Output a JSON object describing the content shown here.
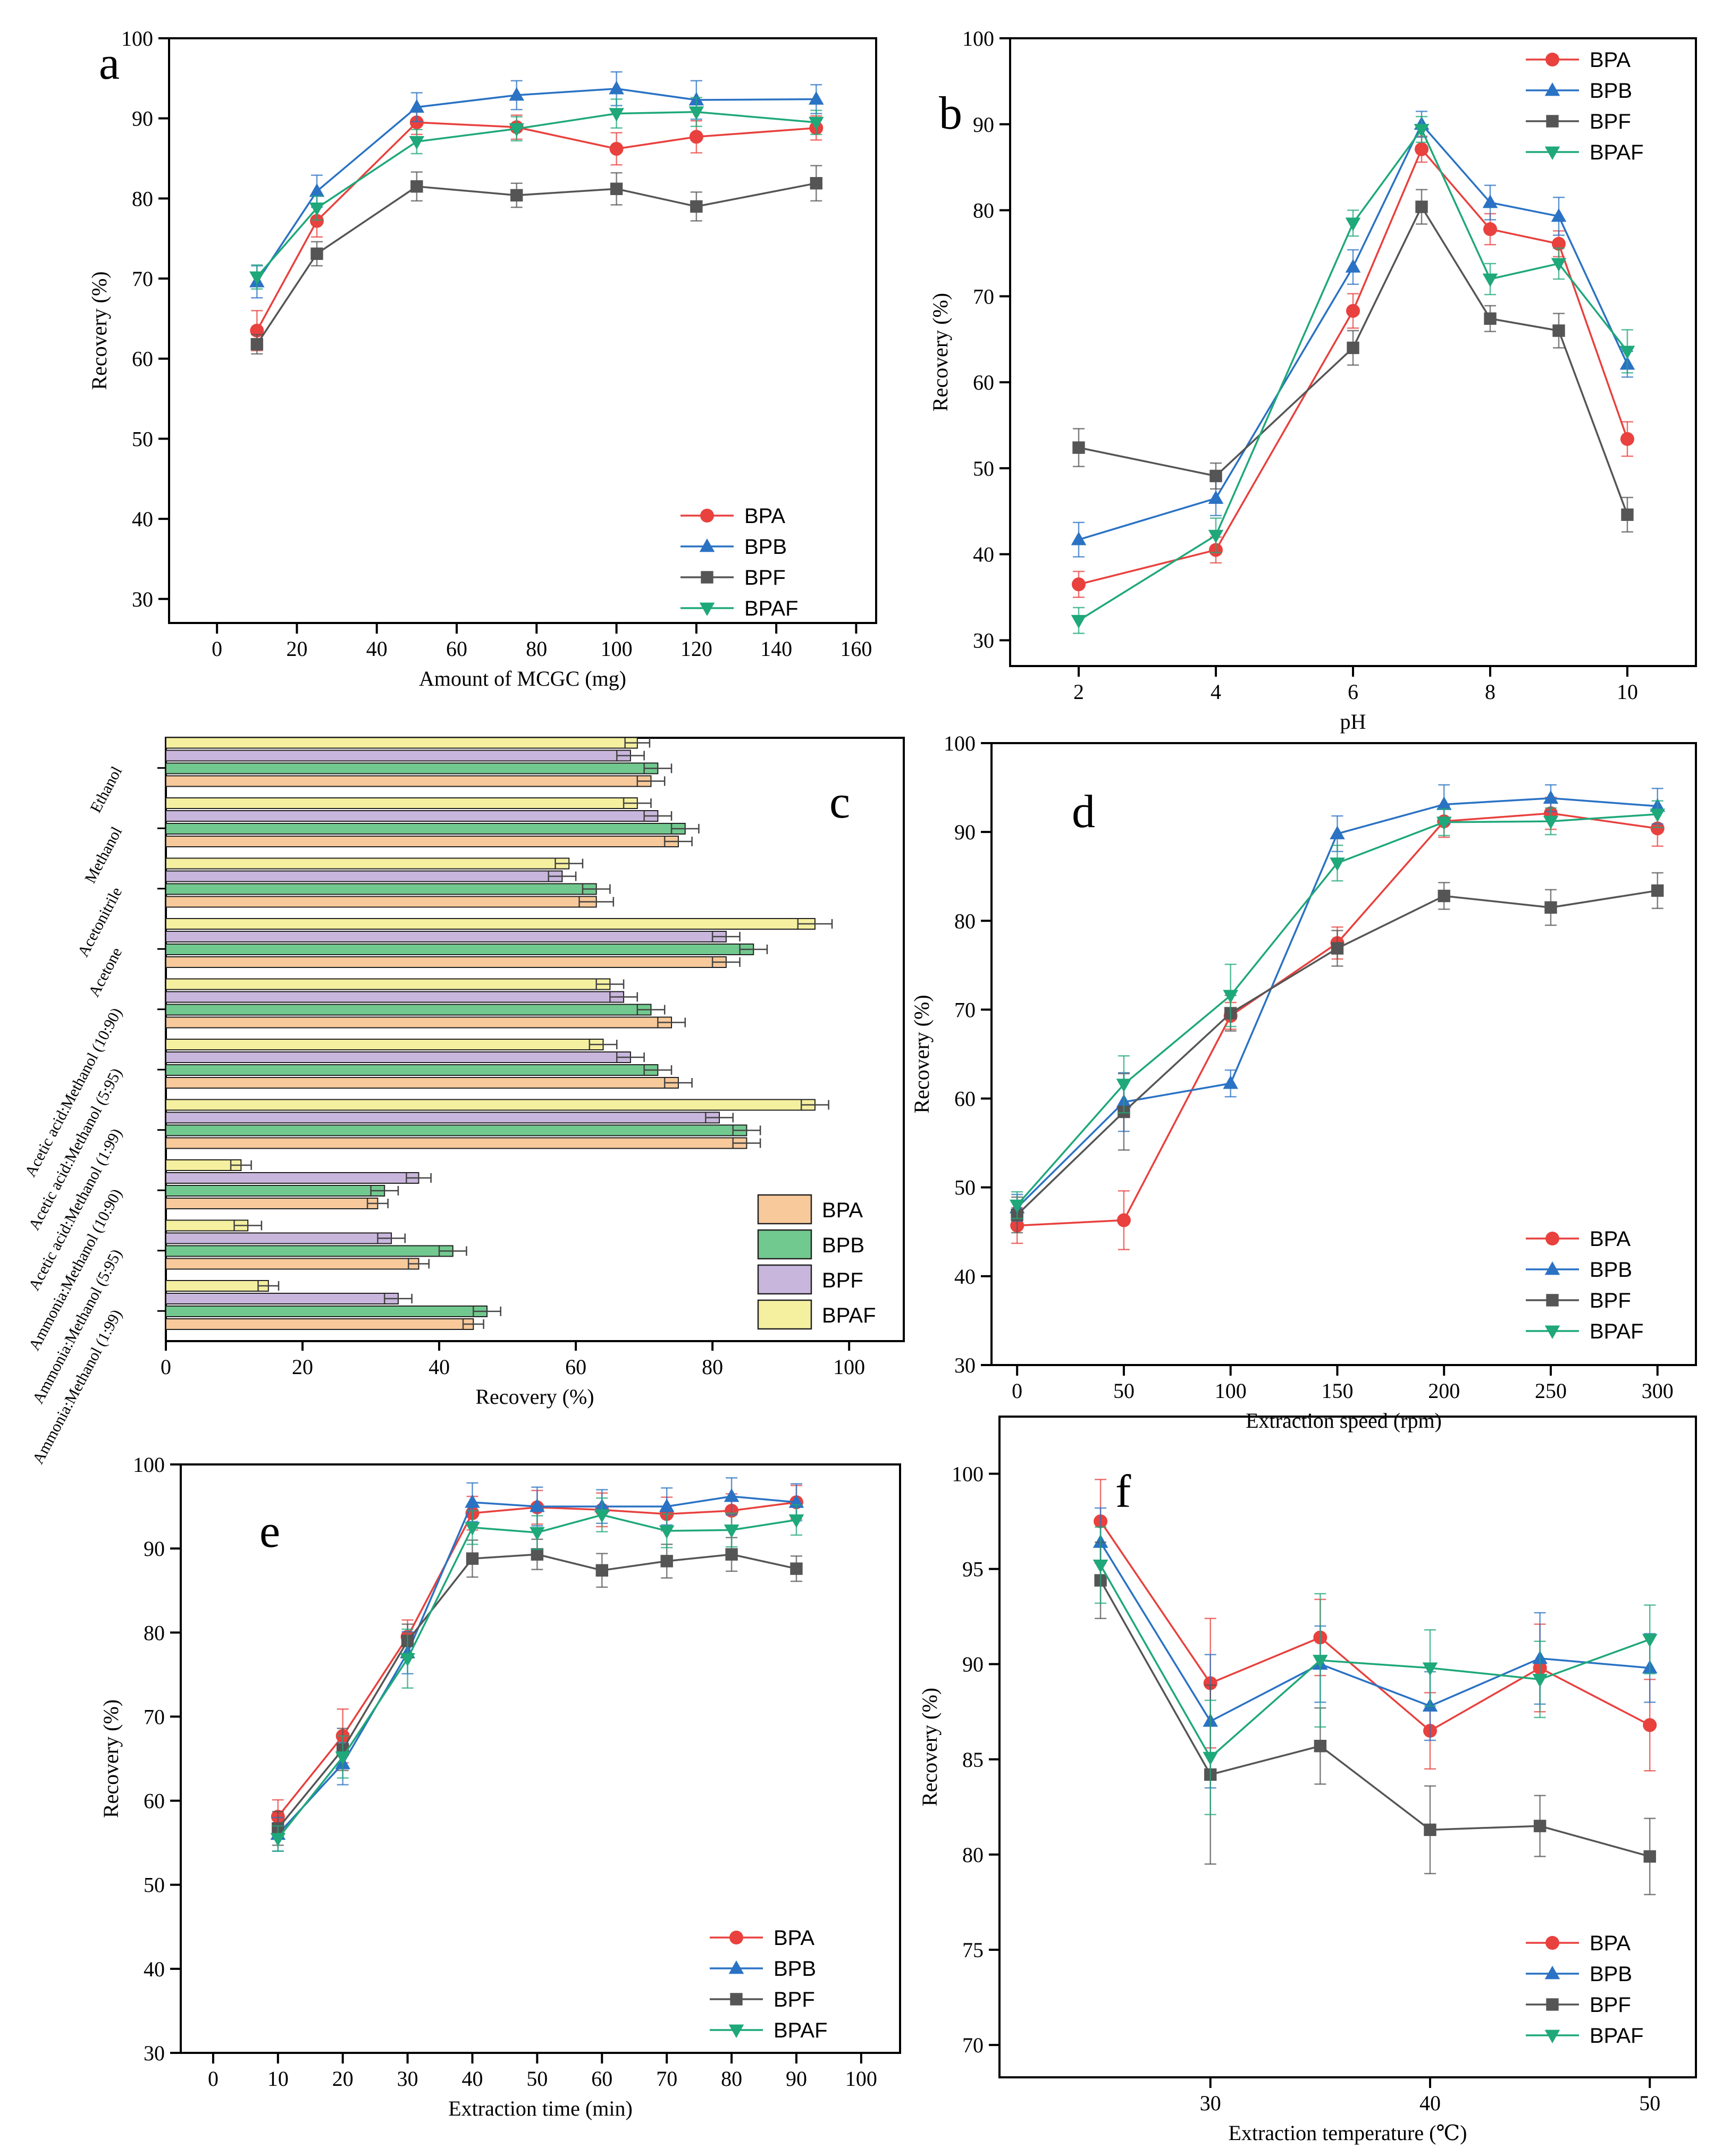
{
  "colors": {
    "BPA": "#e8413e",
    "BPB": "#2a72c4",
    "BPF": "#555555",
    "BPAF": "#1fa87a",
    "BPA_fill": "#f8c99a",
    "BPB_fill": "#72c98f",
    "BPF_fill": "#c9b6dd",
    "BPAF_fill": "#f5f0a0"
  },
  "chart_data": [
    {
      "id": "a",
      "type": "line",
      "panel_label": "a",
      "xlabel": "Amount of MCGC (mg)",
      "ylabel": "Recovery (%)",
      "xlim": [
        -12,
        165
      ],
      "ylim": [
        27,
        100
      ],
      "xticks": [
        0,
        20,
        40,
        60,
        80,
        100,
        120,
        140,
        160
      ],
      "yticks": [
        30,
        40,
        50,
        60,
        70,
        80,
        90,
        100
      ],
      "legend_position": "bottom-right",
      "x": [
        10,
        25,
        50,
        75,
        100,
        120,
        150
      ],
      "series": [
        {
          "name": "BPA",
          "values": [
            63.5,
            77.2,
            89.5,
            88.9,
            86.2,
            87.7,
            88.8
          ],
          "err": [
            2.5,
            2,
            1.5,
            1.5,
            2,
            2,
            1.5
          ]
        },
        {
          "name": "BPB",
          "values": [
            69.6,
            80.9,
            91.4,
            92.9,
            93.7,
            92.3,
            92.4
          ],
          "err": [
            2,
            2,
            1.8,
            1.8,
            2.1,
            2.4,
            1.8
          ]
        },
        {
          "name": "BPF",
          "values": [
            61.8,
            73.1,
            81.5,
            80.4,
            81.2,
            79.0,
            81.9
          ],
          "err": [
            1.2,
            1.5,
            1.8,
            1.5,
            2,
            1.8,
            2.2
          ]
        },
        {
          "name": "BPAF",
          "values": [
            70.2,
            78.8,
            87.1,
            88.7,
            90.6,
            90.8,
            89.5
          ],
          "err": [
            1.5,
            1.5,
            1.5,
            1.5,
            1.8,
            1.8,
            1.5
          ]
        }
      ]
    },
    {
      "id": "b",
      "type": "line",
      "panel_label": "b",
      "xlabel": "pH",
      "ylabel": "Recovery (%)",
      "xlim": [
        1,
        11
      ],
      "ylim": [
        27,
        100
      ],
      "xticks": [
        2,
        4,
        6,
        8,
        10
      ],
      "yticks": [
        30,
        40,
        50,
        60,
        70,
        80,
        90,
        100
      ],
      "legend_position": "top-right",
      "x": [
        2,
        4,
        6,
        7,
        8,
        9,
        10
      ],
      "series": [
        {
          "name": "BPA",
          "values": [
            36.5,
            40.5,
            68.3,
            87.1,
            77.8,
            76.1,
            53.4
          ],
          "err": [
            1.5,
            1.5,
            2,
            1.5,
            1.8,
            1.5,
            2
          ]
        },
        {
          "name": "BPB",
          "values": [
            41.7,
            46.5,
            73.4,
            90.0,
            80.9,
            79.3,
            62.1
          ],
          "err": [
            2,
            2,
            2,
            1.5,
            2,
            2.2,
            1.5
          ]
        },
        {
          "name": "BPF",
          "values": [
            52.4,
            49.1,
            64.0,
            80.4,
            67.4,
            66.0,
            44.6
          ],
          "err": [
            2.2,
            1.5,
            2,
            2,
            1.5,
            2,
            2
          ]
        },
        {
          "name": "BPAF",
          "values": [
            32.3,
            42.2,
            78.5,
            89.4,
            72.0,
            73.8,
            63.6
          ],
          "err": [
            1.5,
            2,
            1.5,
            1.5,
            1.8,
            1.8,
            2.5
          ]
        }
      ]
    },
    {
      "id": "c",
      "type": "bar",
      "orientation": "horizontal",
      "panel_label": "c",
      "xlabel": "Recovery (%)",
      "ylabel": "",
      "xlim": [
        0,
        108
      ],
      "xticks": [
        0,
        20,
        40,
        60,
        80,
        100
      ],
      "legend_position": "bottom-right",
      "categories": [
        "Ethanol",
        "Methanol",
        "Acetonitrile",
        "Acetone",
        "Acetic acid:Methanol (10:90)",
        "Acetic acid:Methanol (5:95)",
        "Acetic acid:Methanol (1:99)",
        "Ammonia:Methanol (10:90)",
        "Ammonia:Methanol (5:95)",
        "Ammonia:Methanol (1:99)"
      ],
      "series": [
        {
          "name": "BPA",
          "values": [
            71,
            75,
            63,
            82,
            74,
            75,
            85,
            31,
            37,
            45
          ],
          "err": [
            2,
            2,
            2.5,
            2,
            2,
            2,
            2,
            1.5,
            1.5,
            1.5
          ]
        },
        {
          "name": "BPB",
          "values": [
            72,
            76,
            63,
            86,
            71,
            72,
            85,
            32,
            42,
            47
          ],
          "err": [
            2,
            2,
            2,
            2,
            2,
            2,
            2,
            2,
            2,
            2
          ]
        },
        {
          "name": "BPF",
          "values": [
            68,
            72,
            58,
            82,
            67,
            68,
            81,
            37,
            33,
            34
          ],
          "err": [
            2,
            2,
            2,
            2,
            2,
            2,
            2,
            1.8,
            2,
            2
          ]
        },
        {
          "name": "BPAF",
          "values": [
            69,
            69,
            59,
            95,
            65,
            64,
            95,
            11,
            12,
            15
          ],
          "err": [
            1.8,
            2,
            2,
            2.5,
            2,
            2,
            2,
            1.5,
            2,
            1.5
          ]
        }
      ]
    },
    {
      "id": "d",
      "type": "line",
      "panel_label": "d",
      "xlabel": "Extraction speed (rpm)",
      "ylabel": "Recovery (%)",
      "xlim": [
        -12,
        318
      ],
      "ylim": [
        30,
        100
      ],
      "xticks": [
        0,
        50,
        100,
        150,
        200,
        250,
        300
      ],
      "yticks": [
        30,
        40,
        50,
        60,
        70,
        80,
        90,
        100
      ],
      "legend_position": "bottom-right",
      "x": [
        0,
        50,
        100,
        150,
        200,
        250,
        300
      ],
      "series": [
        {
          "name": "BPA",
          "values": [
            45.7,
            46.3,
            69.3,
            77.5,
            91.2,
            92.1,
            90.4
          ],
          "err": [
            2,
            3.3,
            1.5,
            1.8,
            1.8,
            1.8,
            2
          ]
        },
        {
          "name": "BPB",
          "values": [
            47.7,
            59.6,
            61.7,
            89.8,
            93.1,
            93.8,
            92.9
          ],
          "err": [
            1.5,
            3.3,
            1.5,
            2,
            2.2,
            1.5,
            2
          ]
        },
        {
          "name": "BPF",
          "values": [
            46.9,
            58.5,
            69.6,
            76.9,
            82.8,
            81.5,
            83.4
          ],
          "err": [
            2,
            4.3,
            2,
            2,
            1.5,
            2,
            2
          ]
        },
        {
          "name": "BPAF",
          "values": [
            48.0,
            61.6,
            71.6,
            86.5,
            91.1,
            91.2,
            92.0
          ],
          "err": [
            1.5,
            3.2,
            3.5,
            2,
            1.5,
            1.5,
            1.5
          ]
        }
      ]
    },
    {
      "id": "e",
      "type": "line",
      "panel_label": "e",
      "xlabel": "Extraction time (min)",
      "ylabel": "Recovery (%)",
      "xlim": [
        -5,
        106
      ],
      "ylim": [
        30,
        100
      ],
      "xticks": [
        0,
        10,
        20,
        30,
        40,
        50,
        60,
        70,
        80,
        90,
        100
      ],
      "yticks": [
        30,
        40,
        50,
        60,
        70,
        80,
        90,
        100
      ],
      "legend_position": "bottom-right",
      "x": [
        10,
        20,
        30,
        40,
        50,
        60,
        70,
        80,
        90
      ],
      "series": [
        {
          "name": "BPA",
          "values": [
            58.1,
            67.7,
            79.5,
            94.2,
            94.9,
            94.6,
            94.1,
            94.5,
            95.5
          ],
          "err": [
            2,
            3.2,
            2,
            2,
            2,
            2,
            2,
            2,
            2
          ]
        },
        {
          "name": "BPB",
          "values": [
            56.0,
            64.4,
            77.6,
            95.5,
            95.0,
            95.0,
            95.0,
            96.2,
            95.5
          ],
          "err": [
            2,
            2.5,
            2.5,
            2.3,
            2.3,
            2,
            2.2,
            2.2,
            2.2
          ]
        },
        {
          "name": "BPF",
          "values": [
            56.7,
            66.1,
            79.0,
            88.8,
            89.3,
            87.4,
            88.5,
            89.3,
            87.6
          ],
          "err": [
            2,
            2.5,
            2,
            2.2,
            1.8,
            2,
            2,
            2,
            1.5
          ]
        },
        {
          "name": "BPAF",
          "values": [
            55.5,
            65.2,
            76.9,
            92.5,
            91.9,
            94.0,
            92.1,
            92.2,
            93.4
          ],
          "err": [
            1.5,
            2.5,
            3.5,
            2,
            2,
            2,
            2,
            2,
            1.8
          ]
        }
      ]
    },
    {
      "id": "f",
      "type": "line",
      "panel_label": "f",
      "xlabel": "Extraction temperature (℃)",
      "ylabel": "Recovery (%)",
      "xlim": [
        20.4,
        52.1
      ],
      "ylim": [
        68.3,
        103
      ],
      "xticks": [
        30,
        40,
        50
      ],
      "yticks": [
        70,
        75,
        80,
        85,
        90,
        95,
        100
      ],
      "legend_position": "bottom-right",
      "x": [
        25,
        30,
        35,
        40,
        45,
        50
      ],
      "series": [
        {
          "name": "BPA",
          "values": [
            97.5,
            89.0,
            91.4,
            86.5,
            89.8,
            86.8
          ],
          "err": [
            2.2,
            3.4,
            2,
            2,
            2.3,
            2.4
          ]
        },
        {
          "name": "BPB",
          "values": [
            96.4,
            87.0,
            90.0,
            87.8,
            90.3,
            89.8
          ],
          "err": [
            1.8,
            3.5,
            2,
            1.8,
            2.4,
            1.8
          ]
        },
        {
          "name": "BPF",
          "values": [
            94.4,
            84.2,
            85.7,
            81.3,
            81.5,
            79.9
          ],
          "err": [
            2,
            4.7,
            2,
            2.3,
            1.6,
            2
          ]
        },
        {
          "name": "BPAF",
          "values": [
            95.2,
            85.1,
            90.2,
            89.8,
            89.2,
            91.3
          ],
          "err": [
            2,
            3,
            3.5,
            2,
            2,
            1.8
          ]
        }
      ]
    }
  ]
}
